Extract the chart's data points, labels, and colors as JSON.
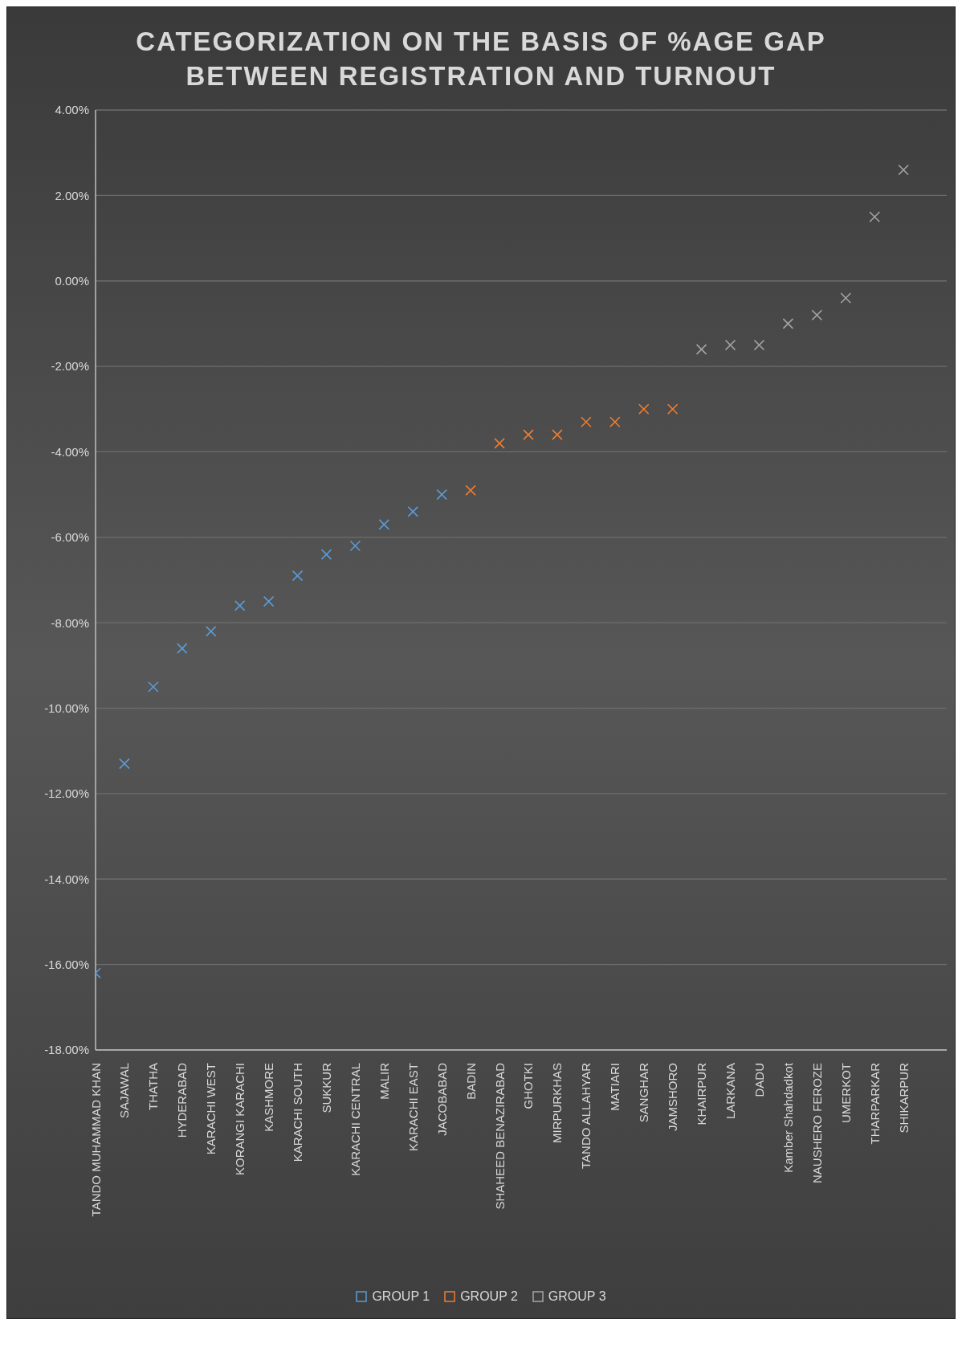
{
  "chart_data": {
    "type": "scatter",
    "title": "CATEGORIZATION ON THE BASIS OF %AGE GAP BETWEEN REGISTRATION AND TURNOUT",
    "categories": [
      "TANDO MUHAMMAD KHAN",
      "SAJAWAL",
      "THATHA",
      "HYDERABAD",
      "KARACHI WEST",
      "KORANGI KARACHI",
      "KASHMORE",
      "KARACHI SOUTH",
      "SUKKUR",
      "KARACHI CENTRAL",
      "MALIR",
      "KARACHI EAST",
      "JACOBABAD",
      "BADIN",
      "SHAHEED BENAZIRABAD",
      "GHOTKI",
      "MIRPURKHAS",
      "TANDO ALLAHYAR",
      "MATIARI",
      "SANGHAR",
      "JAMSHORO",
      "KHAIRPUR",
      "LARKANA",
      "DADU",
      "Kamber Shahdadkot",
      "NAUSHERO FEROZE",
      "UMERKOT",
      "THARPARKAR",
      "SHIKARPUR"
    ],
    "series": [
      {
        "name": "GROUP 1",
        "color": "#5b9bd5",
        "values": [
          -16.2,
          -11.3,
          -9.5,
          -8.6,
          -8.2,
          -7.6,
          -7.5,
          -6.9,
          -6.4,
          -6.2,
          -5.7,
          -5.4,
          -5.0,
          null,
          null,
          null,
          null,
          null,
          null,
          null,
          null,
          null,
          null,
          null,
          null,
          null,
          null,
          null,
          null
        ]
      },
      {
        "name": "GROUP 2",
        "color": "#ed7d31",
        "values": [
          null,
          null,
          null,
          null,
          null,
          null,
          null,
          null,
          null,
          null,
          null,
          null,
          null,
          -4.9,
          -3.8,
          -3.6,
          -3.6,
          -3.3,
          -3.3,
          -3.0,
          -3.0,
          null,
          null,
          null,
          null,
          null,
          null,
          null,
          null
        ]
      },
      {
        "name": "GROUP 3",
        "color": "#a5a5a5",
        "values": [
          null,
          null,
          null,
          null,
          null,
          null,
          null,
          null,
          null,
          null,
          null,
          null,
          null,
          null,
          null,
          null,
          null,
          null,
          null,
          null,
          null,
          -1.6,
          -1.5,
          -1.5,
          -1.0,
          -0.8,
          -0.4,
          1.5,
          2.6
        ]
      }
    ],
    "ylim": [
      -18,
      4
    ],
    "yticks": [
      {
        "value": -18,
        "label": "-18.00%"
      },
      {
        "value": -16,
        "label": "-16.00%"
      },
      {
        "value": -14,
        "label": "-14.00%"
      },
      {
        "value": -12,
        "label": "-12.00%"
      },
      {
        "value": -10,
        "label": "-10.00%"
      },
      {
        "value": -8,
        "label": "-8.00%"
      },
      {
        "value": -6,
        "label": "-6.00%"
      },
      {
        "value": -4,
        "label": "-4.00%"
      },
      {
        "value": -2,
        "label": "-2.00%"
      },
      {
        "value": 0,
        "label": "0.00%"
      },
      {
        "value": 2,
        "label": "2.00%"
      },
      {
        "value": 4,
        "label": "4.00%"
      }
    ],
    "grid": "y",
    "legend": "bottom",
    "marker": "cross"
  }
}
